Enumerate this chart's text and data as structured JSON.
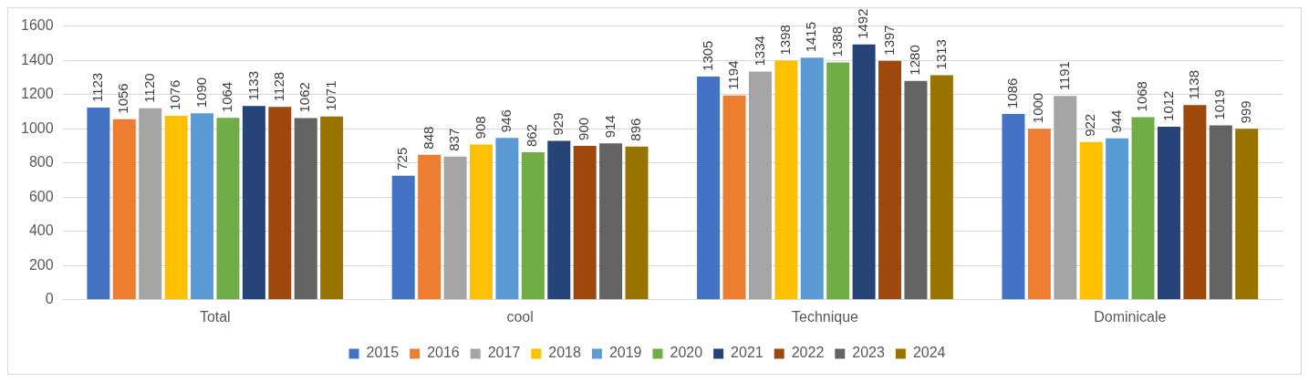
{
  "chart_data": {
    "type": "bar",
    "categories": [
      "Total",
      "cool",
      "Technique",
      "Dominicale"
    ],
    "series": [
      {
        "name": "2015",
        "color": "#4472c4",
        "values": [
          1123,
          725,
          1305,
          1086
        ]
      },
      {
        "name": "2016",
        "color": "#ed7d31",
        "values": [
          1056,
          848,
          1194,
          1000
        ]
      },
      {
        "name": "2017",
        "color": "#a5a5a5",
        "values": [
          1120,
          837,
          1334,
          1191
        ]
      },
      {
        "name": "2018",
        "color": "#ffc000",
        "values": [
          1076,
          908,
          1398,
          922
        ]
      },
      {
        "name": "2019",
        "color": "#5b9bd5",
        "values": [
          1090,
          946,
          1415,
          944
        ]
      },
      {
        "name": "2020",
        "color": "#70ad47",
        "values": [
          1064,
          862,
          1388,
          1068
        ]
      },
      {
        "name": "2021",
        "color": "#264478",
        "values": [
          1133,
          929,
          1492,
          1012
        ]
      },
      {
        "name": "2022",
        "color": "#9e480e",
        "values": [
          1128,
          900,
          1397,
          1138
        ]
      },
      {
        "name": "2023",
        "color": "#636363",
        "values": [
          1062,
          914,
          1280,
          1019
        ]
      },
      {
        "name": "2024",
        "color": "#997300",
        "values": [
          1071,
          896,
          1313,
          999
        ]
      }
    ],
    "ylim": [
      0,
      1600
    ],
    "yticks": [
      0,
      200,
      400,
      600,
      800,
      1000,
      1200,
      1400,
      1600
    ],
    "grid": "y",
    "legend": "bottom",
    "data_labels": true
  }
}
